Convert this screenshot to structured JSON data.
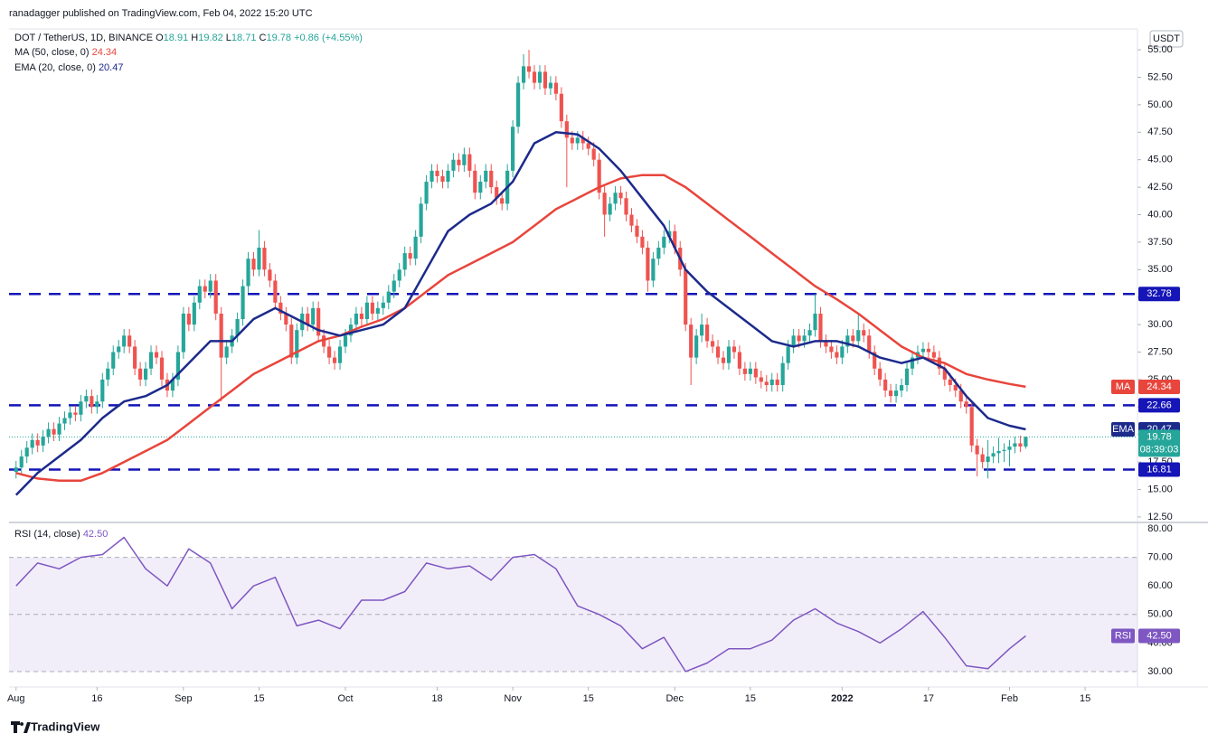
{
  "chart_data": {
    "type": "candlestick",
    "header": {
      "published": "ranadagger published on TradingView.com, Feb 04, 2022 15:20 UTC",
      "symbol": "DOT / TetherUS, 1D, BINANCE",
      "ohlc": [
        {
          "label": "O",
          "value": 18.91
        },
        {
          "label": "H",
          "value": 19.82
        },
        {
          "label": "L",
          "value": 18.71
        },
        {
          "label": "C",
          "value": 19.78
        }
      ],
      "change": "+0.86 (+4.55%)",
      "currency": "USDT",
      "brand": "TradingView"
    },
    "up_color": "#26a69a",
    "down_color": "#ef5350",
    "candles": [
      [
        16.6,
        17.6,
        16,
        17
      ],
      [
        17,
        18.6,
        16.4,
        18
      ],
      [
        18,
        19.4,
        17.4,
        18.8
      ],
      [
        18.8,
        20.1,
        18.2,
        19.5
      ],
      [
        19.5,
        20.1,
        18.4,
        19
      ],
      [
        19,
        20.4,
        18.4,
        19.8
      ],
      [
        19.8,
        21.1,
        19.2,
        20.5
      ],
      [
        20.5,
        21.1,
        19.4,
        20
      ],
      [
        20,
        21.6,
        19.4,
        21
      ],
      [
        21,
        22.1,
        20.4,
        21.5
      ],
      [
        21.5,
        22.6,
        20.9,
        22
      ],
      [
        22,
        22.6,
        21.2,
        21.8
      ],
      [
        21.8,
        23.6,
        21.2,
        23
      ],
      [
        23,
        24.1,
        22.4,
        23.5
      ],
      [
        23.5,
        24.1,
        21.9,
        22.5
      ],
      [
        22.5,
        23.6,
        21.9,
        23
      ],
      [
        23,
        25.6,
        22.4,
        25
      ],
      [
        25,
        26.6,
        24.4,
        26
      ],
      [
        26,
        28.1,
        25.4,
        27.5
      ],
      [
        27.5,
        28.6,
        26.9,
        28
      ],
      [
        28,
        29.6,
        27.4,
        29
      ],
      [
        29,
        29.6,
        27.4,
        28
      ],
      [
        28,
        28.6,
        25.4,
        26
      ],
      [
        26,
        26.6,
        24.4,
        25
      ],
      [
        25,
        26.6,
        24.4,
        26
      ],
      [
        26,
        28.1,
        25.4,
        27.5
      ],
      [
        27.5,
        28.1,
        26.4,
        27
      ],
      [
        27,
        27.6,
        24.4,
        25
      ],
      [
        25,
        25.6,
        23.4,
        24
      ],
      [
        24,
        25.6,
        23.4,
        25
      ],
      [
        25,
        28.1,
        24.4,
        27.5
      ],
      [
        27.5,
        31.6,
        26.9,
        31
      ],
      [
        31,
        31.6,
        29.4,
        30
      ],
      [
        30,
        32.6,
        29.4,
        32
      ],
      [
        32,
        34.1,
        31.4,
        33.5
      ],
      [
        33.5,
        34.1,
        32.4,
        33
      ],
      [
        33,
        34.6,
        32.4,
        34
      ],
      [
        34,
        34.6,
        30.4,
        31
      ],
      [
        31,
        31.6,
        23,
        27
      ],
      [
        27,
        28.6,
        26.4,
        28
      ],
      [
        28,
        29.6,
        27.4,
        29
      ],
      [
        29,
        31.1,
        28.4,
        30.5
      ],
      [
        30.5,
        34.1,
        29.9,
        33.5
      ],
      [
        33.5,
        36.6,
        32.9,
        36
      ],
      [
        36,
        36.6,
        34.4,
        35
      ],
      [
        35,
        38.6,
        34.4,
        37
      ],
      [
        37,
        37.6,
        34.4,
        35
      ],
      [
        35,
        35.6,
        33.4,
        34
      ],
      [
        34,
        34.6,
        31.4,
        32
      ],
      [
        32,
        32.6,
        30.4,
        31
      ],
      [
        31,
        31.6,
        29.4,
        30
      ],
      [
        30,
        30.6,
        26.4,
        27
      ],
      [
        27,
        30.1,
        26.4,
        29.5
      ],
      [
        29.5,
        31.6,
        28.9,
        31
      ],
      [
        31,
        31.6,
        29.4,
        30
      ],
      [
        30,
        32.1,
        29.4,
        31.5
      ],
      [
        31.5,
        32.1,
        28.4,
        29
      ],
      [
        29,
        29.6,
        27.4,
        28
      ],
      [
        28,
        28.6,
        26.4,
        27
      ],
      [
        27,
        27.6,
        25.9,
        26.5
      ],
      [
        26.5,
        28.6,
        25.9,
        28
      ],
      [
        28,
        29.6,
        27.4,
        29
      ],
      [
        29,
        30.6,
        28.4,
        30
      ],
      [
        30,
        31.6,
        29.4,
        31
      ],
      [
        31,
        31.6,
        29.9,
        30.5
      ],
      [
        30.5,
        32.6,
        29.9,
        32
      ],
      [
        32,
        32.6,
        30.4,
        31
      ],
      [
        31,
        32.1,
        30.4,
        31.5
      ],
      [
        31.5,
        32.6,
        30.9,
        32
      ],
      [
        32,
        33.6,
        31.4,
        33
      ],
      [
        33,
        34.6,
        32.4,
        34
      ],
      [
        34,
        35.6,
        33.4,
        35
      ],
      [
        35,
        37.1,
        34.4,
        36.5
      ],
      [
        36.5,
        37.1,
        35.4,
        36
      ],
      [
        36,
        38.6,
        35.4,
        38
      ],
      [
        38,
        41.6,
        37.4,
        41
      ],
      [
        41,
        43.6,
        40.4,
        43
      ],
      [
        43,
        44.6,
        42.4,
        44
      ],
      [
        44,
        44.6,
        42.9,
        43.5
      ],
      [
        43.5,
        44.1,
        42.4,
        43
      ],
      [
        43,
        44.6,
        42.4,
        44
      ],
      [
        44,
        45.6,
        43.4,
        45
      ],
      [
        45,
        45.6,
        43.9,
        44.5
      ],
      [
        44.5,
        46.1,
        43.9,
        45.5
      ],
      [
        45.5,
        46.1,
        43.4,
        44
      ],
      [
        44,
        44.6,
        41.4,
        42
      ],
      [
        42,
        43.6,
        41.4,
        43
      ],
      [
        43,
        44.6,
        42.4,
        44
      ],
      [
        44,
        44.6,
        41.9,
        42.5
      ],
      [
        42.5,
        43.1,
        40.9,
        41.5
      ],
      [
        41.5,
        42.1,
        40.4,
        41
      ],
      [
        41,
        44.6,
        40.4,
        44
      ],
      [
        44,
        48.6,
        43.4,
        48
      ],
      [
        48,
        52.6,
        47.4,
        52
      ],
      [
        52,
        54.6,
        51.4,
        53.5
      ],
      [
        53.5,
        55,
        52.4,
        53
      ],
      [
        53,
        53.6,
        51.4,
        52
      ],
      [
        52,
        53.6,
        51.4,
        53
      ],
      [
        53,
        53.6,
        50.9,
        51.5
      ],
      [
        51.5,
        52.6,
        50.9,
        52
      ],
      [
        52,
        52.6,
        50.4,
        51
      ],
      [
        51,
        51.6,
        47.9,
        48.5
      ],
      [
        48.5,
        49.1,
        42.5,
        47
      ],
      [
        47,
        47.6,
        45.9,
        46.5
      ],
      [
        46.5,
        47.6,
        45.9,
        47
      ],
      [
        47,
        47.6,
        45.9,
        46.5
      ],
      [
        46.5,
        47.1,
        45.4,
        46
      ],
      [
        46,
        46.6,
        44.4,
        45
      ],
      [
        45,
        45.6,
        41.4,
        42
      ],
      [
        42,
        42.6,
        38,
        40
      ],
      [
        40,
        41.6,
        39.4,
        41
      ],
      [
        41,
        42.6,
        40.4,
        42
      ],
      [
        42,
        42.6,
        40.9,
        41.5
      ],
      [
        41.5,
        42.1,
        39.4,
        40
      ],
      [
        40,
        40.6,
        38.4,
        39
      ],
      [
        39,
        39.6,
        37.4,
        38
      ],
      [
        38,
        38.6,
        36.4,
        37
      ],
      [
        37,
        37.6,
        33,
        34
      ],
      [
        34,
        36.6,
        33.4,
        36
      ],
      [
        36,
        37.6,
        35.4,
        37
      ],
      [
        37,
        38.6,
        36.4,
        38
      ],
      [
        38,
        39.5,
        37.4,
        38.5
      ],
      [
        38.5,
        39.1,
        36.4,
        37
      ],
      [
        37,
        37.6,
        34.4,
        35
      ],
      [
        35,
        35.6,
        29.4,
        30
      ],
      [
        30,
        30.6,
        24.5,
        27
      ],
      [
        27,
        29.6,
        26.4,
        29
      ],
      [
        29,
        31,
        28.4,
        30
      ],
      [
        30,
        30.6,
        27.9,
        28.5
      ],
      [
        28.5,
        29.1,
        27.4,
        28
      ],
      [
        28,
        28.6,
        26.4,
        27
      ],
      [
        27,
        27.6,
        25.9,
        26.5
      ],
      [
        26.5,
        28.6,
        25.9,
        28
      ],
      [
        28,
        28.6,
        26.9,
        27.5
      ],
      [
        27.5,
        28.1,
        25.4,
        26
      ],
      [
        26,
        26.6,
        24.9,
        25.5
      ],
      [
        25.5,
        26.6,
        24.9,
        26
      ],
      [
        26,
        26.6,
        24.6,
        25.2
      ],
      [
        25.2,
        25.8,
        24.2,
        24.8
      ],
      [
        24.8,
        25.4,
        23.9,
        24.5
      ],
      [
        24.5,
        25.6,
        23.9,
        25
      ],
      [
        25,
        25.6,
        23.9,
        24.5
      ],
      [
        24.5,
        27.1,
        23.9,
        26.5
      ],
      [
        26.5,
        28.6,
        25.9,
        28
      ],
      [
        28,
        29.6,
        27.4,
        29
      ],
      [
        29,
        29.6,
        27.9,
        28.5
      ],
      [
        28.5,
        29.6,
        27.9,
        29
      ],
      [
        29,
        30.1,
        28.4,
        29.5
      ],
      [
        29.5,
        32.8,
        28.9,
        31
      ],
      [
        31,
        31.6,
        27.9,
        28.5
      ],
      [
        28.5,
        29.1,
        27.4,
        28
      ],
      [
        28,
        28.6,
        26.9,
        27.5
      ],
      [
        27.5,
        28.1,
        26.4,
        27
      ],
      [
        27,
        28.6,
        26.4,
        28
      ],
      [
        28,
        29.6,
        27.4,
        29
      ],
      [
        29,
        29.6,
        27.9,
        28.5
      ],
      [
        28.5,
        31,
        27.9,
        29.5
      ],
      [
        29.5,
        30.1,
        28.4,
        29
      ],
      [
        29,
        29.6,
        26.9,
        27.5
      ],
      [
        27.5,
        28.1,
        25.4,
        26
      ],
      [
        26,
        26.6,
        24.4,
        25
      ],
      [
        25,
        25.6,
        23.4,
        24
      ],
      [
        24,
        24.6,
        22.9,
        23.5
      ],
      [
        23.5,
        24.6,
        22.9,
        24
      ],
      [
        24,
        25.1,
        23.4,
        24.5
      ],
      [
        24.5,
        26.6,
        23.9,
        26
      ],
      [
        26,
        27.6,
        25.4,
        27
      ],
      [
        27,
        28.1,
        26.4,
        27.5
      ],
      [
        27.5,
        28.4,
        26.9,
        27.8
      ],
      [
        27.8,
        28.4,
        26.9,
        27.5
      ],
      [
        27.5,
        28.1,
        26.4,
        27
      ],
      [
        27,
        27.6,
        25.4,
        26
      ],
      [
        26,
        26.6,
        24.4,
        25
      ],
      [
        25,
        25.6,
        23.9,
        24.5
      ],
      [
        24.5,
        25.1,
        23.4,
        24
      ],
      [
        24,
        24.6,
        22.4,
        23
      ],
      [
        23,
        23.6,
        21.9,
        22.5
      ],
      [
        22.5,
        23.1,
        18.4,
        19
      ],
      [
        19,
        19.6,
        16.2,
        18.2
      ],
      [
        18.2,
        18.8,
        16.9,
        17.5
      ],
      [
        17.5,
        19.5,
        16,
        18
      ],
      [
        18,
        18.9,
        17.4,
        18.3
      ],
      [
        18.3,
        19.7,
        17.4,
        18.5
      ],
      [
        18.5,
        19.2,
        17.5,
        18.6
      ],
      [
        18.6,
        19.5,
        17.1,
        18.9
      ],
      [
        18.9,
        19.8,
        18.3,
        19.2
      ],
      [
        19.2,
        19.9,
        18.4,
        18.91
      ],
      [
        18.91,
        19.82,
        18.71,
        19.78
      ]
    ],
    "xlim": [
      -1.3,
      207.7
    ],
    "xticks": [
      {
        "value": 0,
        "label": "Aug"
      },
      {
        "value": 15,
        "label": "16"
      },
      {
        "value": 31,
        "label": "Sep"
      },
      {
        "value": 45,
        "label": "15"
      },
      {
        "value": 61,
        "label": "Oct"
      },
      {
        "value": 78,
        "label": "18"
      },
      {
        "value": 92,
        "label": "Nov"
      },
      {
        "value": 106,
        "label": "15"
      },
      {
        "value": 122,
        "label": "Dec"
      },
      {
        "value": 136,
        "label": "15"
      },
      {
        "value": 153,
        "label": "2022"
      },
      {
        "value": 169,
        "label": "17"
      },
      {
        "value": 184,
        "label": "Feb"
      },
      {
        "value": 198,
        "label": "15"
      }
    ],
    "ylim": [
      12.0,
      56.9
    ],
    "yticks": [
      {
        "value": 12.5,
        "label": "12.50"
      },
      {
        "value": 15,
        "label": "15.00"
      },
      {
        "value": 17.5,
        "label": "17.50"
      },
      {
        "value": 20,
        "label": "20.00"
      },
      {
        "value": 22.5,
        "label": "22.50"
      },
      {
        "value": 25,
        "label": "25.00"
      },
      {
        "value": 27.5,
        "label": "27.50"
      },
      {
        "value": 30,
        "label": "30.00"
      },
      {
        "value": 32.5,
        "label": "32.50"
      },
      {
        "value": 35,
        "label": "35.00"
      },
      {
        "value": 37.5,
        "label": "37.50"
      },
      {
        "value": 40,
        "label": "40.00"
      },
      {
        "value": 42.5,
        "label": "42.50"
      },
      {
        "value": 45,
        "label": "45.00"
      },
      {
        "value": 47.5,
        "label": "47.50"
      },
      {
        "value": 50,
        "label": "50.00"
      },
      {
        "value": 52.5,
        "label": "52.50"
      },
      {
        "value": 55,
        "label": "55.00"
      }
    ],
    "levels": [
      32.78,
      22.66,
      16.81
    ],
    "level_color": "#1515b8",
    "last_price": 19.78,
    "countdown": "08:39:03",
    "overlays": {
      "x": [
        0,
        4,
        8,
        12,
        16,
        20,
        24,
        28,
        32,
        36,
        40,
        44,
        48,
        52,
        56,
        60,
        64,
        68,
        72,
        76,
        80,
        84,
        88,
        92,
        96,
        100,
        104,
        108,
        112,
        116,
        120,
        124,
        128,
        132,
        136,
        140,
        144,
        148,
        152,
        156,
        160,
        164,
        168,
        172,
        176,
        180,
        184,
        187
      ],
      "series": [
        {
          "name": "MA (50, close, 0)",
          "tag": "MA",
          "color": "#e8453c",
          "value_label": "24.34",
          "values": [
            16.5,
            16,
            15.8,
            15.8,
            16.5,
            17.5,
            18.5,
            19.5,
            21,
            22.5,
            24,
            25.5,
            26.5,
            27.5,
            28.5,
            29,
            29.8,
            30.5,
            31.5,
            33,
            34.5,
            35.5,
            36.5,
            37.5,
            39,
            40.5,
            41.5,
            42.5,
            43.3,
            43.6,
            43.6,
            42.5,
            41,
            39.5,
            38,
            36.5,
            35,
            33.5,
            32.3,
            31,
            29.5,
            28,
            27,
            26.5,
            25.5,
            25,
            24.6,
            24.34
          ]
        },
        {
          "name": "EMA (20, close, 0)",
          "tag": "EMA",
          "color": "#1c2a8c",
          "value_label": "20.47",
          "values": [
            14.5,
            16.5,
            18,
            19.5,
            21.5,
            23,
            23.5,
            24.5,
            26.5,
            28.5,
            28.5,
            30.5,
            31.5,
            30.5,
            29.5,
            29,
            29.5,
            30,
            31.5,
            35,
            38.5,
            40,
            41,
            43,
            46.5,
            47.5,
            47.3,
            46,
            44,
            41.5,
            39,
            35,
            33,
            31.5,
            30,
            28.5,
            28,
            28.5,
            28.5,
            28,
            27,
            26.5,
            27,
            26,
            23.5,
            21.5,
            20.8,
            20.47
          ]
        }
      ]
    },
    "rsi": {
      "name": "RSI (14, close)",
      "tag": "RSI",
      "color": "#7e57c2",
      "value_label": "42.50",
      "ylim": [
        24.6,
        81.6
      ],
      "band": [
        30,
        70
      ],
      "yticks": [
        {
          "value": 30,
          "label": "30.00"
        },
        {
          "value": 40,
          "label": "40.00"
        },
        {
          "value": 50,
          "label": "50.00"
        },
        {
          "value": 60,
          "label": "60.00"
        },
        {
          "value": 70,
          "label": "70.00"
        },
        {
          "value": 80,
          "label": "80.00"
        }
      ],
      "values": [
        60,
        68,
        66,
        70,
        71,
        77,
        66,
        60,
        73,
        68,
        52,
        60,
        63,
        46,
        48,
        45,
        55,
        55,
        58,
        68,
        66,
        67,
        62,
        70,
        71,
        66,
        53,
        50,
        46,
        38,
        42,
        30,
        33,
        38,
        38,
        41,
        48,
        52,
        47,
        44,
        40,
        45,
        51,
        42,
        32,
        31,
        38,
        42.5
      ]
    }
  }
}
